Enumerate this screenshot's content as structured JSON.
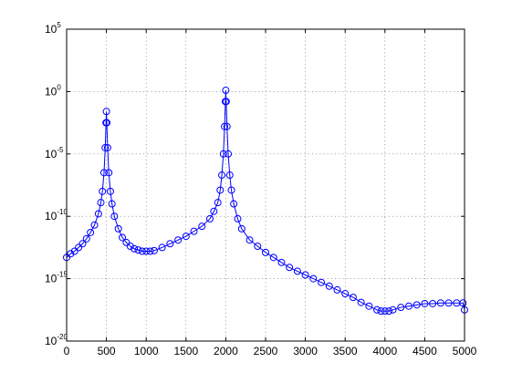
{
  "chart_data": {
    "type": "line",
    "title": "",
    "xlabel": "",
    "ylabel": "",
    "xlim": [
      0,
      5000
    ],
    "ylim_log10": [
      -20,
      5
    ],
    "yscale": "log",
    "grid": true,
    "xticks": [
      "0",
      "500",
      "1000",
      "1500",
      "2000",
      "2500",
      "3000",
      "3500",
      "4000",
      "4500",
      "5000"
    ],
    "yticks": [
      {
        "base": "10",
        "exponent": "5"
      },
      {
        "base": "10",
        "exponent": "0"
      },
      {
        "base": "10",
        "exponent": "-5"
      },
      {
        "base": "10",
        "exponent": "-10"
      },
      {
        "base": "10",
        "exponent": "-15"
      },
      {
        "base": "10",
        "exponent": "-20"
      }
    ],
    "series": [
      {
        "color": "#0000ff",
        "marker": "circle",
        "points_log10": [
          [
            0,
            -13.3
          ],
          [
            50,
            -13.0
          ],
          [
            100,
            -12.8
          ],
          [
            150,
            -12.5
          ],
          [
            200,
            -12.2
          ],
          [
            250,
            -11.8
          ],
          [
            300,
            -11.3
          ],
          [
            350,
            -10.7
          ],
          [
            400,
            -9.8
          ],
          [
            430,
            -8.9
          ],
          [
            450,
            -8.0
          ],
          [
            470,
            -6.5
          ],
          [
            485,
            -4.5
          ],
          [
            495,
            -2.5
          ],
          [
            500,
            -1.6
          ],
          [
            505,
            -2.5
          ],
          [
            515,
            -4.5
          ],
          [
            530,
            -6.5
          ],
          [
            550,
            -8.0
          ],
          [
            570,
            -9.0
          ],
          [
            600,
            -10.0
          ],
          [
            650,
            -11.0
          ],
          [
            700,
            -11.7
          ],
          [
            750,
            -12.1
          ],
          [
            800,
            -12.4
          ],
          [
            850,
            -12.6
          ],
          [
            900,
            -12.7
          ],
          [
            950,
            -12.8
          ],
          [
            1000,
            -12.8
          ],
          [
            1050,
            -12.8
          ],
          [
            1100,
            -12.75
          ],
          [
            1200,
            -12.5
          ],
          [
            1300,
            -12.2
          ],
          [
            1400,
            -11.9
          ],
          [
            1500,
            -11.6
          ],
          [
            1600,
            -11.2
          ],
          [
            1700,
            -10.8
          ],
          [
            1800,
            -10.2
          ],
          [
            1850,
            -9.6
          ],
          [
            1900,
            -8.9
          ],
          [
            1930,
            -7.9
          ],
          [
            1950,
            -6.7
          ],
          [
            1970,
            -5.0
          ],
          [
            1985,
            -2.8
          ],
          [
            1995,
            -0.8
          ],
          [
            2000,
            0.1
          ],
          [
            2005,
            -0.8
          ],
          [
            2015,
            -2.8
          ],
          [
            2030,
            -5.0
          ],
          [
            2050,
            -6.7
          ],
          [
            2070,
            -7.9
          ],
          [
            2100,
            -9.0
          ],
          [
            2150,
            -10.2
          ],
          [
            2200,
            -11.0
          ],
          [
            2300,
            -11.9
          ],
          [
            2400,
            -12.4
          ],
          [
            2500,
            -12.9
          ],
          [
            2600,
            -13.3
          ],
          [
            2700,
            -13.7
          ],
          [
            2800,
            -14.1
          ],
          [
            2900,
            -14.4
          ],
          [
            3000,
            -14.7
          ],
          [
            3100,
            -15.0
          ],
          [
            3200,
            -15.3
          ],
          [
            3300,
            -15.6
          ],
          [
            3400,
            -15.9
          ],
          [
            3500,
            -16.2
          ],
          [
            3600,
            -16.5
          ],
          [
            3700,
            -16.9
          ],
          [
            3800,
            -17.2
          ],
          [
            3900,
            -17.5
          ],
          [
            3950,
            -17.6
          ],
          [
            4000,
            -17.6
          ],
          [
            4050,
            -17.6
          ],
          [
            4100,
            -17.5
          ],
          [
            4200,
            -17.3
          ],
          [
            4300,
            -17.2
          ],
          [
            4400,
            -17.1
          ],
          [
            4500,
            -17.0
          ],
          [
            4600,
            -17.0
          ],
          [
            4700,
            -16.95
          ],
          [
            4800,
            -16.95
          ],
          [
            4900,
            -16.95
          ],
          [
            4980,
            -16.95
          ],
          [
            5000,
            -17.5
          ]
        ]
      }
    ]
  }
}
